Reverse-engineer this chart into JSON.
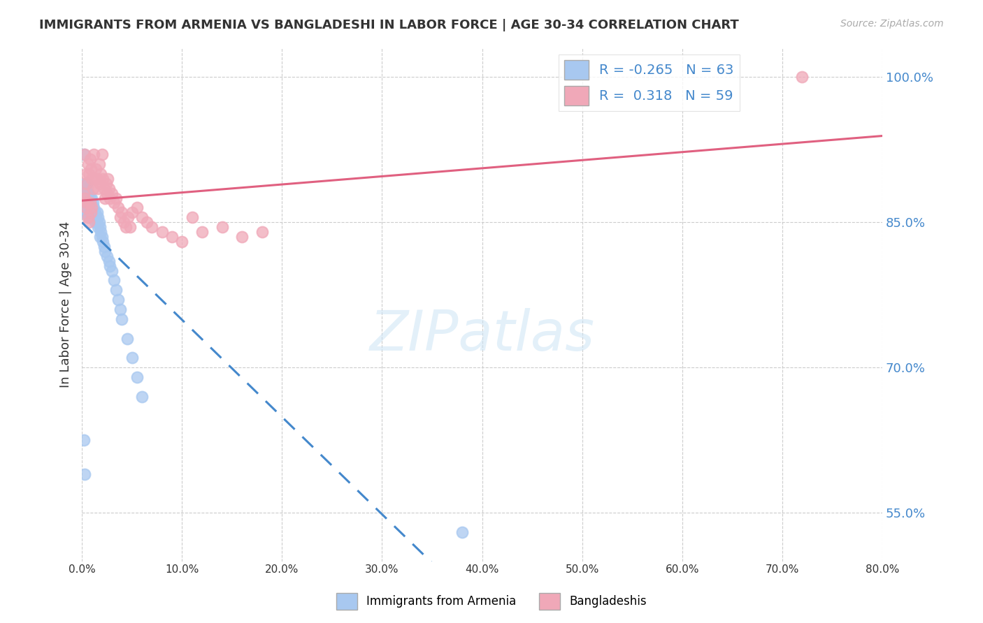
{
  "title": "IMMIGRANTS FROM ARMENIA VS BANGLADESHI IN LABOR FORCE | AGE 30-34 CORRELATION CHART",
  "source": "Source: ZipAtlas.com",
  "ylabel": "In Labor Force | Age 30-34",
  "xlim": [
    0.0,
    0.8
  ],
  "ylim": [
    0.5,
    1.03
  ],
  "yticks": [
    0.55,
    0.7,
    0.85,
    1.0
  ],
  "ytick_labels": [
    "55.0%",
    "70.0%",
    "85.0%",
    "100.0%"
  ],
  "background_color": "#ffffff",
  "legend_r_armenia": "-0.265",
  "legend_n_armenia": "63",
  "legend_r_bangladeshi": "0.318",
  "legend_n_bangladeshi": "59",
  "armenia_color": "#a8c8f0",
  "bangladeshi_color": "#f0a8b8",
  "armenia_line_color": "#4488cc",
  "bangladeshi_line_color": "#e06080",
  "grid_color": "#cccccc",
  "armenia_x": [
    0.001,
    0.002,
    0.002,
    0.003,
    0.003,
    0.003,
    0.004,
    0.004,
    0.004,
    0.005,
    0.005,
    0.005,
    0.005,
    0.006,
    0.006,
    0.006,
    0.006,
    0.007,
    0.007,
    0.007,
    0.008,
    0.008,
    0.008,
    0.009,
    0.009,
    0.01,
    0.01,
    0.01,
    0.011,
    0.011,
    0.012,
    0.012,
    0.013,
    0.013,
    0.014,
    0.015,
    0.015,
    0.016,
    0.016,
    0.017,
    0.018,
    0.018,
    0.019,
    0.02,
    0.021,
    0.022,
    0.023,
    0.025,
    0.027,
    0.028,
    0.03,
    0.032,
    0.034,
    0.036,
    0.038,
    0.04,
    0.045,
    0.05,
    0.055,
    0.06,
    0.002,
    0.003,
    0.38
  ],
  "armenia_y": [
    0.875,
    0.92,
    0.87,
    0.89,
    0.88,
    0.86,
    0.885,
    0.87,
    0.89,
    0.875,
    0.86,
    0.88,
    0.89,
    0.875,
    0.865,
    0.88,
    0.855,
    0.875,
    0.86,
    0.87,
    0.875,
    0.865,
    0.855,
    0.87,
    0.86,
    0.875,
    0.865,
    0.855,
    0.87,
    0.86,
    0.865,
    0.855,
    0.86,
    0.85,
    0.855,
    0.86,
    0.85,
    0.855,
    0.845,
    0.85,
    0.845,
    0.835,
    0.84,
    0.835,
    0.83,
    0.825,
    0.82,
    0.815,
    0.81,
    0.805,
    0.8,
    0.79,
    0.78,
    0.77,
    0.76,
    0.75,
    0.73,
    0.71,
    0.69,
    0.67,
    0.625,
    0.59,
    0.53
  ],
  "bangladeshi_x": [
    0.002,
    0.003,
    0.004,
    0.005,
    0.006,
    0.007,
    0.008,
    0.009,
    0.01,
    0.011,
    0.012,
    0.013,
    0.014,
    0.015,
    0.016,
    0.017,
    0.018,
    0.019,
    0.02,
    0.021,
    0.022,
    0.023,
    0.024,
    0.025,
    0.026,
    0.027,
    0.028,
    0.03,
    0.032,
    0.034,
    0.036,
    0.038,
    0.04,
    0.042,
    0.044,
    0.046,
    0.048,
    0.05,
    0.055,
    0.06,
    0.065,
    0.07,
    0.08,
    0.09,
    0.1,
    0.11,
    0.12,
    0.14,
    0.16,
    0.18,
    0.003,
    0.004,
    0.005,
    0.006,
    0.007,
    0.008,
    0.009,
    0.01,
    0.72
  ],
  "bangladeshi_y": [
    0.88,
    0.92,
    0.9,
    0.89,
    0.91,
    0.9,
    0.915,
    0.905,
    0.895,
    0.885,
    0.92,
    0.895,
    0.905,
    0.895,
    0.885,
    0.91,
    0.89,
    0.9,
    0.92,
    0.895,
    0.885,
    0.875,
    0.89,
    0.88,
    0.895,
    0.885,
    0.875,
    0.88,
    0.87,
    0.875,
    0.865,
    0.855,
    0.86,
    0.85,
    0.845,
    0.855,
    0.845,
    0.86,
    0.865,
    0.855,
    0.85,
    0.845,
    0.84,
    0.835,
    0.83,
    0.855,
    0.84,
    0.845,
    0.835,
    0.84,
    0.875,
    0.865,
    0.87,
    0.855,
    0.85,
    0.87,
    0.86,
    0.865,
    1.0
  ]
}
